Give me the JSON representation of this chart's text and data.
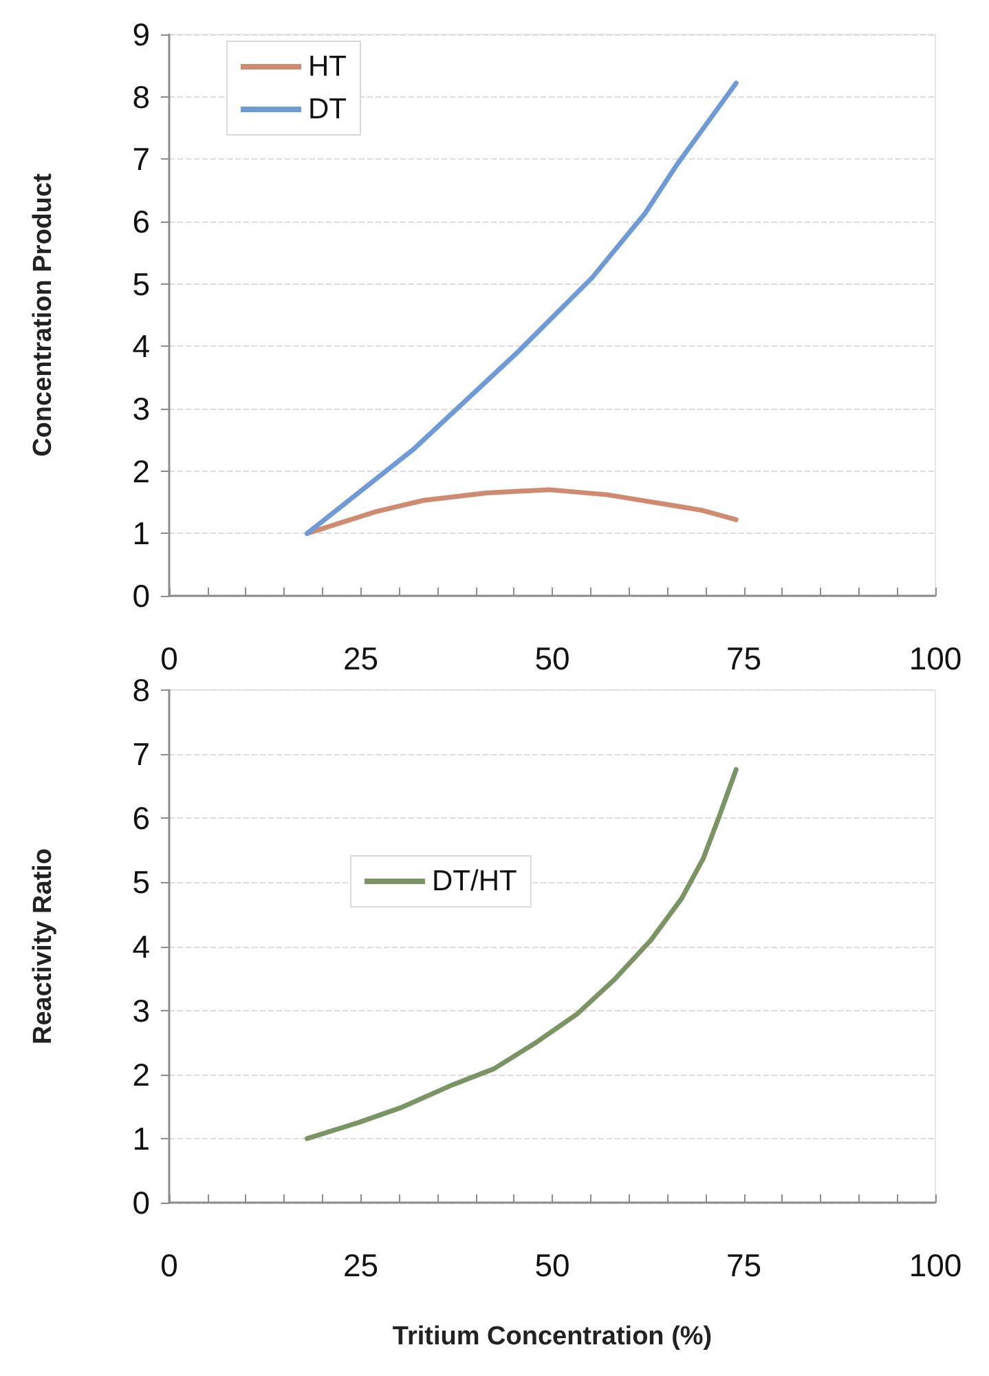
{
  "chart_data": [
    {
      "type": "line",
      "ylabel": "Concentration Product",
      "xlim": [
        0,
        100
      ],
      "xticks": [
        0,
        {
          "value": 5,
          "label": null
        },
        {
          "value": 10,
          "label": null
        },
        {
          "value": 15,
          "label": null
        },
        {
          "value": 20,
          "label": null
        },
        25,
        {
          "value": 30,
          "label": null
        },
        {
          "value": 35,
          "label": null
        },
        {
          "value": 40,
          "label": null
        },
        {
          "value": 45,
          "label": null
        },
        50,
        {
          "value": 55,
          "label": null
        },
        {
          "value": 60,
          "label": null
        },
        {
          "value": 65,
          "label": null
        },
        {
          "value": 70,
          "label": null
        },
        75,
        {
          "value": 80,
          "label": null
        },
        {
          "value": 85,
          "label": null
        },
        {
          "value": 90,
          "label": null
        },
        {
          "value": 95,
          "label": null
        },
        100
      ],
      "ylim": [
        0,
        9
      ],
      "yticks": [
        0,
        1,
        2,
        3,
        4,
        5,
        6,
        7,
        8,
        9
      ],
      "grid": "y",
      "legend": "top left",
      "marker": "none",
      "line_style": "solid",
      "series": [
        {
          "name": "HT",
          "color": "#d08a70",
          "x": [
            18,
            27,
            33.2,
            41.4,
            49.7,
            57.2,
            66.2,
            69.6,
            74
          ],
          "values": [
            1,
            1.35,
            1.53,
            1.65,
            1.7,
            1.62,
            1.44,
            1.37,
            1.22
          ]
        },
        {
          "name": "DT",
          "color": "#6f9ad8",
          "x": [
            18,
            31.8,
            45.6,
            55.2,
            62.1,
            66.2,
            74
          ],
          "values": [
            1,
            2.34,
            3.92,
            5.1,
            6.13,
            6.9,
            8.22
          ]
        }
      ]
    },
    {
      "type": "line",
      "ylabel": "Reactivity Ratio",
      "xlabel": "Tritium Concentration (%)",
      "xlim": [
        0,
        100
      ],
      "xticks": [
        0,
        {
          "value": 5,
          "label": null
        },
        {
          "value": 10,
          "label": null
        },
        {
          "value": 15,
          "label": null
        },
        {
          "value": 20,
          "label": null
        },
        25,
        {
          "value": 30,
          "label": null
        },
        {
          "value": 35,
          "label": null
        },
        {
          "value": 40,
          "label": null
        },
        {
          "value": 45,
          "label": null
        },
        50,
        {
          "value": 55,
          "label": null
        },
        {
          "value": 60,
          "label": null
        },
        {
          "value": 65,
          "label": null
        },
        {
          "value": 70,
          "label": null
        },
        75,
        {
          "value": 80,
          "label": null
        },
        {
          "value": 85,
          "label": null
        },
        {
          "value": 90,
          "label": null
        },
        {
          "value": 95,
          "label": null
        },
        100
      ],
      "ylim": [
        0,
        8
      ],
      "yticks": [
        0,
        1,
        2,
        3,
        4,
        5,
        6,
        7,
        8
      ],
      "grid": "y",
      "legend": "center",
      "marker": "none",
      "line_style": "solid",
      "series": [
        {
          "name": "DT/HT",
          "color": "#7a9463",
          "x": [
            18,
            24.7,
            30.2,
            37,
            42.4,
            47.9,
            53.3,
            58.1,
            62.9,
            66.9,
            69.7,
            71.7,
            74
          ],
          "values": [
            1,
            1.25,
            1.48,
            1.84,
            2.09,
            2.5,
            2.95,
            3.48,
            4.1,
            4.75,
            5.37,
            6,
            6.76
          ]
        }
      ]
    }
  ]
}
